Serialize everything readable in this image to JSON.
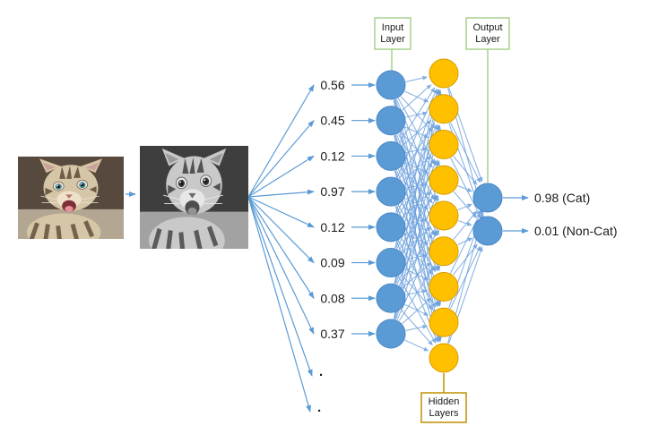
{
  "diagram": {
    "input_values": [
      "0.56",
      "0.45",
      "0.12",
      "0.97",
      "0.12",
      "0.09",
      "0.08",
      "0.37"
    ],
    "ellipsis": [
      ".",
      "."
    ],
    "outputs": [
      "0.98 (Cat)",
      "0.01 (Non-Cat)"
    ],
    "boxes": {
      "input": [
        "Input",
        "Layer"
      ],
      "output": [
        "Output",
        "Layer"
      ],
      "hidden": [
        "Hidden",
        "Layers"
      ]
    },
    "network": {
      "input_node_count": 8,
      "hidden_node_count": 9,
      "output_node_count": 2
    },
    "colors": {
      "input_node_fill": "#5B9BD5",
      "input_node_stroke": "#4A86C5",
      "hidden_node_fill": "#FFC000",
      "hidden_node_stroke": "#D79B00",
      "output_node_fill": "#5B9BD5",
      "edge": "#6CA0DC",
      "arrow": "#5B9BD5",
      "layer_box_green": "#A9D18E",
      "layer_box_yellow": "#BF9000",
      "text": "#1a1a1a"
    }
  }
}
